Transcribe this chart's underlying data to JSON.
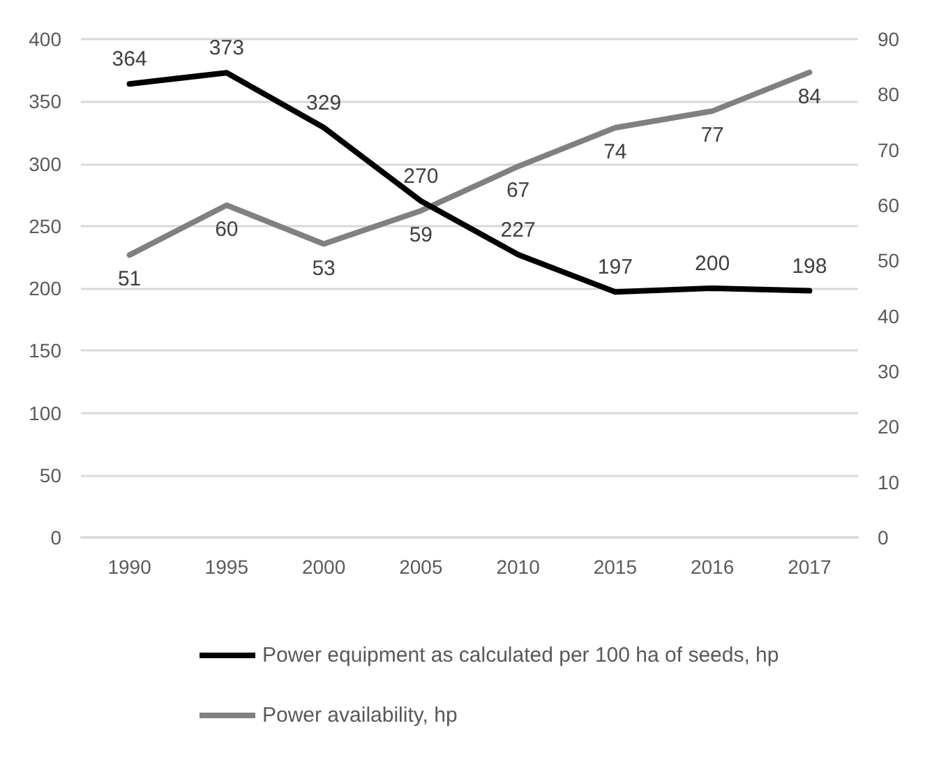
{
  "chart_data": {
    "type": "line",
    "categories": [
      "1990",
      "1995",
      "2000",
      "2005",
      "2010",
      "2015",
      "2016",
      "2017"
    ],
    "series": [
      {
        "name": "Power equipment as calculated per 100 ha of seeds, hp",
        "color": "#000000",
        "values": [
          364,
          373,
          329,
          270,
          227,
          197,
          200,
          198
        ]
      },
      {
        "name": "Power availability, hp",
        "color": "#808080",
        "axis": "y2",
        "values": [
          51,
          60,
          53,
          59,
          67,
          74,
          77,
          84
        ]
      }
    ],
    "ylim": [
      0,
      400
    ],
    "yticks": [
      0,
      50,
      100,
      150,
      200,
      250,
      300,
      350,
      400
    ],
    "y2lim": [
      0,
      90
    ],
    "y2ticks": [
      0,
      10,
      20,
      30,
      40,
      50,
      60,
      70,
      80,
      90
    ],
    "data_labels": true,
    "grid": "y",
    "legend": "bottom",
    "marker": "none",
    "line_style": "solid"
  }
}
